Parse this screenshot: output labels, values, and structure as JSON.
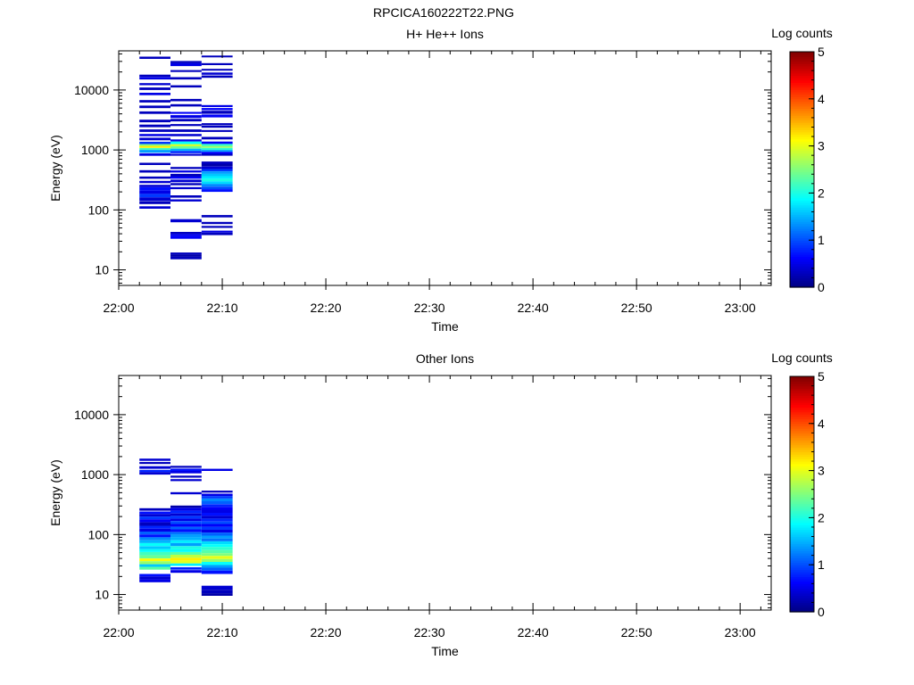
{
  "figure": {
    "title": "RPCICA160222T22.PNG"
  },
  "chart_data": [
    {
      "type": "heatmap",
      "title": "H+ He++ Ions",
      "xlabel": "Time",
      "ylabel": "Energy (eV)",
      "x_ticks": [
        "22:00",
        "22:10",
        "22:20",
        "22:30",
        "22:40",
        "22:50",
        "23:00"
      ],
      "x_range": [
        "22:00",
        "23:03"
      ],
      "y_scale": "log",
      "y_range": [
        5.5,
        45000
      ],
      "y_ticks": [
        "10",
        "100",
        "1000",
        "10000"
      ],
      "colorbar": {
        "label": "Log counts",
        "min": 0,
        "max": 5,
        "ticks": [
          "0",
          "1",
          "2",
          "3",
          "4",
          "5"
        ]
      },
      "columns": [
        {
          "t0": "22:02",
          "t1": "22:05",
          "cells": [
            [
              33000,
              36000,
              0.3
            ],
            [
              16500,
              18000,
              0.3
            ],
            [
              15000,
              16500,
              0.5
            ],
            [
              12000,
              13000,
              0.4
            ],
            [
              10000,
              11000,
              0.3
            ],
            [
              8200,
              9000,
              0.5
            ],
            [
              6200,
              6800,
              0.3
            ],
            [
              5000,
              5500,
              0.3
            ],
            [
              4000,
              4400,
              0.3
            ],
            [
              2900,
              3200,
              0.3
            ],
            [
              2400,
              2650,
              0.3
            ],
            [
              2000,
              2200,
              0.3
            ],
            [
              1700,
              1850,
              0.5
            ],
            [
              1450,
              1600,
              0.4
            ],
            [
              1250,
              1370,
              0.9
            ],
            [
              1170,
              1250,
              2.5
            ],
            [
              1080,
              1170,
              3.2
            ],
            [
              1000,
              1080,
              2.2
            ],
            [
              900,
              1000,
              1.4
            ],
            [
              800,
              880,
              0.5
            ],
            [
              560,
              610,
              0.3
            ],
            [
              420,
              460,
              0.3
            ],
            [
              330,
              360,
              0.3
            ],
            [
              280,
              305,
              0.4
            ],
            [
              240,
              262,
              0.4
            ],
            [
              210,
              240,
              0.7
            ],
            [
              185,
              210,
              0.5
            ],
            [
              162,
              185,
              0.9
            ],
            [
              142,
              162,
              0.4
            ],
            [
              125,
              140,
              0.3
            ],
            [
              105,
              115,
              0.4
            ]
          ]
        },
        {
          "t0": "22:05",
          "t1": "22:08",
          "cells": [
            [
              28000,
              30500,
              0.3
            ],
            [
              25000,
              28000,
              0.5
            ],
            [
              20000,
              21500,
              0.3
            ],
            [
              15000,
              16400,
              0.3
            ],
            [
              11000,
              12000,
              0.3
            ],
            [
              6500,
              7100,
              0.3
            ],
            [
              5300,
              5800,
              0.3
            ],
            [
              4000,
              4300,
              0.6
            ],
            [
              3400,
              3800,
              0.5
            ],
            [
              3000,
              3300,
              0.3
            ],
            [
              2500,
              2700,
              0.3
            ],
            [
              2000,
              2200,
              0.3
            ],
            [
              1700,
              1850,
              0.4
            ],
            [
              1380,
              1500,
              0.5
            ],
            [
              1250,
              1380,
              1.9
            ],
            [
              1150,
              1250,
              2.9
            ],
            [
              1050,
              1150,
              2.4
            ],
            [
              960,
              1050,
              1.5
            ],
            [
              880,
              960,
              0.8
            ],
            [
              800,
              860,
              0.4
            ],
            [
              480,
              520,
              0.3
            ],
            [
              420,
              455,
              0.5
            ],
            [
              360,
              400,
              0.3
            ],
            [
              330,
              360,
              0.6
            ],
            [
              290,
              320,
              0.4
            ],
            [
              258,
              280,
              0.3
            ],
            [
              222,
              240,
              0.4
            ],
            [
              160,
              175,
              0.3
            ],
            [
              138,
              150,
              0.4
            ],
            [
              62,
              70,
              0.4
            ],
            [
              40,
              43,
              0.3
            ],
            [
              37,
              40,
              0.5
            ],
            [
              33,
              37,
              0.6
            ],
            [
              18,
              19.5,
              0.3
            ],
            [
              16.5,
              18,
              0.2
            ],
            [
              15,
              16.5,
              0.3
            ]
          ]
        },
        {
          "t0": "22:08",
          "t1": "22:11",
          "cells": [
            [
              35000,
              37500,
              0.3
            ],
            [
              26000,
              28000,
              0.3
            ],
            [
              21000,
              22500,
              0.3
            ],
            [
              18000,
              19600,
              0.4
            ],
            [
              16000,
              17500,
              0.3
            ],
            [
              5200,
              5600,
              0.5
            ],
            [
              4600,
              5000,
              0.6
            ],
            [
              4000,
              4500,
              0.3
            ],
            [
              3500,
              3900,
              0.6
            ],
            [
              2600,
              2800,
              0.3
            ],
            [
              2350,
              2550,
              0.3
            ],
            [
              2000,
              2150,
              0.3
            ],
            [
              1500,
              1650,
              0.3
            ],
            [
              1260,
              1380,
              0.6
            ],
            [
              1170,
              1260,
              2.1
            ],
            [
              1080,
              1170,
              2.6
            ],
            [
              1000,
              1080,
              2.1
            ],
            [
              930,
              1000,
              1.4
            ],
            [
              860,
              930,
              0.6
            ],
            [
              800,
              860,
              0.3
            ],
            [
              580,
              640,
              0.3
            ],
            [
              530,
              580,
              0.2
            ],
            [
              480,
              530,
              0.4
            ],
            [
              440,
              480,
              0.9
            ],
            [
              400,
              440,
              1.4
            ],
            [
              365,
              400,
              1.6
            ],
            [
              330,
              365,
              1.8
            ],
            [
              300,
              330,
              2.0
            ],
            [
              270,
              300,
              1.7
            ],
            [
              245,
              270,
              1.3
            ],
            [
              222,
              245,
              1.0
            ],
            [
              200,
              222,
              0.7
            ],
            [
              75,
              82,
              0.3
            ],
            [
              58,
              63,
              0.3
            ],
            [
              50,
              54,
              0.3
            ],
            [
              42,
              45,
              0.5
            ],
            [
              38,
              42,
              0.3
            ]
          ]
        }
      ]
    },
    {
      "type": "heatmap",
      "title": "Other Ions",
      "xlabel": "Time",
      "ylabel": "Energy (eV)",
      "x_ticks": [
        "22:00",
        "22:10",
        "22:20",
        "22:30",
        "22:40",
        "22:50",
        "23:00"
      ],
      "x_range": [
        "22:00",
        "23:03"
      ],
      "y_scale": "log",
      "y_range": [
        5.5,
        45000
      ],
      "y_ticks": [
        "10",
        "100",
        "1000",
        "10000"
      ],
      "colorbar": {
        "label": "Log counts",
        "min": 0,
        "max": 5,
        "ticks": [
          "0",
          "1",
          "2",
          "3",
          "4",
          "5"
        ]
      },
      "columns": [
        {
          "t0": "22:02",
          "t1": "22:05",
          "cells": [
            [
              1700,
              1850,
              0.4
            ],
            [
              1500,
              1620,
              0.3
            ],
            [
              1250,
              1380,
              0.4
            ],
            [
              1100,
              1200,
              0.8
            ],
            [
              1000,
              1100,
              0.4
            ],
            [
              250,
              275,
              0.3
            ],
            [
              220,
              242,
              0.7
            ],
            [
              200,
              220,
              0.4
            ],
            [
              180,
              200,
              0.9
            ],
            [
              160,
              180,
              0.6
            ],
            [
              140,
              160,
              0.3
            ],
            [
              125,
              140,
              0.8
            ],
            [
              112,
              125,
              0.5
            ],
            [
              100,
              112,
              1.1
            ],
            [
              90,
              100,
              0.7
            ],
            [
              80,
              90,
              1.3
            ],
            [
              72,
              80,
              1.5
            ],
            [
              64,
              72,
              1.9
            ],
            [
              57,
              64,
              1.6
            ],
            [
              51,
              57,
              1.9
            ],
            [
              45,
              51,
              2.2
            ],
            [
              40,
              45,
              2.4
            ],
            [
              36,
              40,
              3.1
            ],
            [
              32,
              36,
              2.6
            ],
            [
              29,
              32,
              1.6
            ],
            [
              26,
              29,
              2.3
            ],
            [
              20,
              22,
              0.7
            ],
            [
              18,
              20,
              0.4
            ],
            [
              16,
              18,
              0.5
            ]
          ]
        },
        {
          "t0": "22:05",
          "t1": "22:08",
          "cells": [
            [
              1300,
              1400,
              0.3
            ],
            [
              1150,
              1260,
              0.7
            ],
            [
              1050,
              1150,
              0.5
            ],
            [
              890,
              960,
              0.3
            ],
            [
              780,
              840,
              0.4
            ],
            [
              470,
              510,
              0.4
            ],
            [
              280,
              305,
              0.2
            ],
            [
              250,
              280,
              0.5
            ],
            [
              225,
              250,
              0.8
            ],
            [
              205,
              225,
              0.4
            ],
            [
              185,
              205,
              0.9
            ],
            [
              168,
              185,
              0.5
            ],
            [
              150,
              168,
              1.0
            ],
            [
              135,
              150,
              0.6
            ],
            [
              122,
              135,
              1.1
            ],
            [
              110,
              122,
              0.7
            ],
            [
              100,
              110,
              1.2
            ],
            [
              90,
              100,
              1.4
            ],
            [
              80,
              90,
              1.5
            ],
            [
              72,
              80,
              1.8
            ],
            [
              64,
              72,
              1.4
            ],
            [
              57,
              64,
              2.0
            ],
            [
              51,
              57,
              1.9
            ],
            [
              46,
              51,
              2.3
            ],
            [
              41,
              46,
              2.8
            ],
            [
              37,
              41,
              3.2
            ],
            [
              33,
              37,
              3.0
            ],
            [
              30,
              33,
              1.8
            ],
            [
              26,
              28.5,
              0.8
            ],
            [
              23,
              25.5,
              0.5
            ]
          ]
        },
        {
          "t0": "22:08",
          "t1": "22:11",
          "cells": [
            [
              1150,
              1250,
              0.5
            ],
            [
              500,
              540,
              0.3
            ],
            [
              440,
              480,
              0.5
            ],
            [
              400,
              440,
              0.9
            ],
            [
              360,
              400,
              1.3
            ],
            [
              320,
              360,
              1.1
            ],
            [
              290,
              320,
              0.8
            ],
            [
              260,
              290,
              0.6
            ],
            [
              230,
              260,
              0.5
            ],
            [
              205,
              230,
              0.7
            ],
            [
              185,
              205,
              0.4
            ],
            [
              165,
              185,
              0.8
            ],
            [
              150,
              165,
              1.0
            ],
            [
              135,
              150,
              0.6
            ],
            [
              120,
              135,
              0.9
            ],
            [
              108,
              120,
              0.5
            ],
            [
              96,
              108,
              1.1
            ],
            [
              86,
              96,
              1.4
            ],
            [
              77,
              86,
              1.2
            ],
            [
              69,
              77,
              1.7
            ],
            [
              62,
              69,
              1.9
            ],
            [
              55,
              62,
              2.1
            ],
            [
              49,
              55,
              2.3
            ],
            [
              44,
              49,
              2.5
            ],
            [
              39,
              44,
              3.0
            ],
            [
              35,
              39,
              2.6
            ],
            [
              31,
              35,
              1.9
            ],
            [
              28,
              31,
              1.4
            ],
            [
              25,
              28,
              1.1
            ],
            [
              22,
              25,
              0.7
            ],
            [
              12,
              14,
              0.4
            ],
            [
              10.5,
              12,
              0.3
            ],
            [
              9.5,
              10.5,
              0.2
            ]
          ]
        }
      ]
    }
  ]
}
